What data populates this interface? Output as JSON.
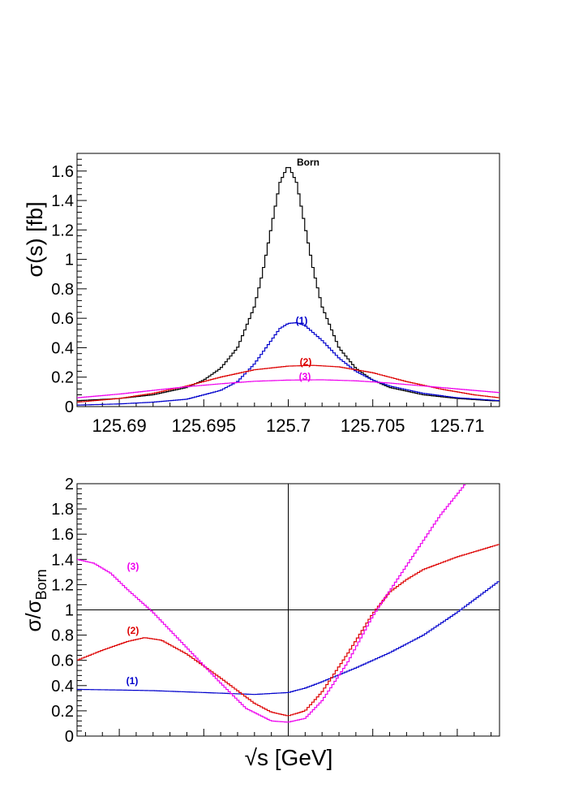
{
  "chart_data": [
    {
      "type": "line",
      "panel": "top",
      "xlabel": "",
      "ylabel": "σ(s) [fb]",
      "xlim": [
        125.6875,
        125.7125
      ],
      "ylim": [
        0,
        1.72
      ],
      "xticks": [
        125.69,
        125.695,
        125.7,
        125.705,
        125.71
      ],
      "xtick_labels": [
        "125.69",
        "125.695",
        "125.7",
        "125.705",
        "125.71"
      ],
      "yticks": [
        0,
        0.2,
        0.4,
        0.6,
        0.8,
        1,
        1.2,
        1.4,
        1.6
      ],
      "ytick_labels": [
        "0",
        "0.2",
        "0.4",
        "0.6",
        "0.8",
        "1",
        "1.2",
        "1.4",
        "1.6"
      ],
      "series": [
        {
          "name": "Born",
          "color": "#000000",
          "x": [
            125.6875,
            125.69,
            125.692,
            125.694,
            125.695,
            125.696,
            125.697,
            125.698,
            125.6985,
            125.699,
            125.6995,
            125.7,
            125.7005,
            125.701,
            125.7015,
            125.702,
            125.703,
            125.704,
            125.705,
            125.706,
            125.708,
            125.71,
            125.712,
            125.7125
          ],
          "y": [
            0.04,
            0.055,
            0.08,
            0.13,
            0.18,
            0.26,
            0.4,
            0.68,
            0.92,
            1.22,
            1.52,
            1.64,
            1.52,
            1.22,
            0.92,
            0.68,
            0.4,
            0.26,
            0.18,
            0.13,
            0.08,
            0.055,
            0.04,
            0.038
          ]
        },
        {
          "name": "(1)",
          "color": "#0000cc",
          "x": [
            125.6875,
            125.69,
            125.692,
            125.694,
            125.696,
            125.697,
            125.698,
            125.699,
            125.6995,
            125.7,
            125.7005,
            125.701,
            125.702,
            125.703,
            125.704,
            125.705,
            125.706,
            125.708,
            125.71,
            125.7125
          ],
          "y": [
            0.01,
            0.018,
            0.03,
            0.05,
            0.11,
            0.17,
            0.29,
            0.45,
            0.53,
            0.565,
            0.57,
            0.55,
            0.45,
            0.33,
            0.24,
            0.18,
            0.14,
            0.09,
            0.06,
            0.04
          ]
        },
        {
          "name": "(2)",
          "color": "#dd0000",
          "x": [
            125.6875,
            125.69,
            125.692,
            125.694,
            125.696,
            125.698,
            125.7,
            125.7015,
            125.703,
            125.705,
            125.707,
            125.709,
            125.711,
            125.7125
          ],
          "y": [
            0.03,
            0.055,
            0.09,
            0.14,
            0.2,
            0.25,
            0.275,
            0.28,
            0.27,
            0.23,
            0.17,
            0.12,
            0.08,
            0.06
          ]
        },
        {
          "name": "(3)",
          "color": "#ee00ee",
          "x": [
            125.6875,
            125.69,
            125.692,
            125.694,
            125.696,
            125.698,
            125.7,
            125.702,
            125.704,
            125.706,
            125.708,
            125.71,
            125.7125
          ],
          "y": [
            0.06,
            0.085,
            0.11,
            0.135,
            0.155,
            0.172,
            0.18,
            0.182,
            0.175,
            0.16,
            0.14,
            0.12,
            0.095
          ]
        }
      ]
    },
    {
      "type": "line",
      "panel": "bottom",
      "xlabel": "√s   [GeV]",
      "ylabel": "σ/σBorn",
      "ylabel_main": "σ/σ",
      "ylabel_sub": "Born",
      "xlim": [
        125.6875,
        125.7125
      ],
      "ylim": [
        0,
        2
      ],
      "yticks": [
        0,
        0.2,
        0.4,
        0.6,
        0.8,
        1,
        1.2,
        1.4,
        1.6,
        1.8,
        2
      ],
      "ytick_labels": [
        "0",
        "0.2",
        "0.4",
        "0.6",
        "0.8",
        "1",
        "1.2",
        "1.4",
        "1.6",
        "1.8",
        "2"
      ],
      "reference_lines": {
        "y": 1,
        "x": 125.7
      },
      "series": [
        {
          "name": "(1)",
          "color": "#0000cc",
          "x": [
            125.6875,
            125.69,
            125.692,
            125.694,
            125.696,
            125.698,
            125.7,
            125.701,
            125.702,
            125.704,
            125.706,
            125.708,
            125.71,
            125.7125
          ],
          "y": [
            0.37,
            0.365,
            0.36,
            0.35,
            0.34,
            0.33,
            0.345,
            0.38,
            0.43,
            0.54,
            0.66,
            0.8,
            0.98,
            1.23
          ]
        },
        {
          "name": "(2)",
          "color": "#dd0000",
          "x": [
            125.6875,
            125.689,
            125.6905,
            125.6915,
            125.6925,
            125.694,
            125.696,
            125.698,
            125.699,
            125.7,
            125.701,
            125.702,
            125.7035,
            125.705,
            125.706,
            125.707,
            125.708,
            125.71,
            125.7125
          ],
          "y": [
            0.6,
            0.68,
            0.75,
            0.78,
            0.76,
            0.65,
            0.46,
            0.26,
            0.19,
            0.16,
            0.2,
            0.35,
            0.65,
            0.97,
            1.14,
            1.24,
            1.32,
            1.42,
            1.52
          ]
        },
        {
          "name": "(3)",
          "color": "#ee00ee",
          "x": [
            125.6875,
            125.6885,
            125.6895,
            125.6905,
            125.692,
            125.694,
            125.696,
            125.6975,
            125.699,
            125.7,
            125.701,
            125.702,
            125.7035,
            125.705,
            125.707,
            125.709,
            125.7105
          ],
          "y": [
            1.4,
            1.37,
            1.29,
            1.16,
            0.98,
            0.7,
            0.42,
            0.22,
            0.12,
            0.11,
            0.14,
            0.28,
            0.58,
            0.95,
            1.35,
            1.75,
            2.0
          ]
        }
      ]
    }
  ]
}
